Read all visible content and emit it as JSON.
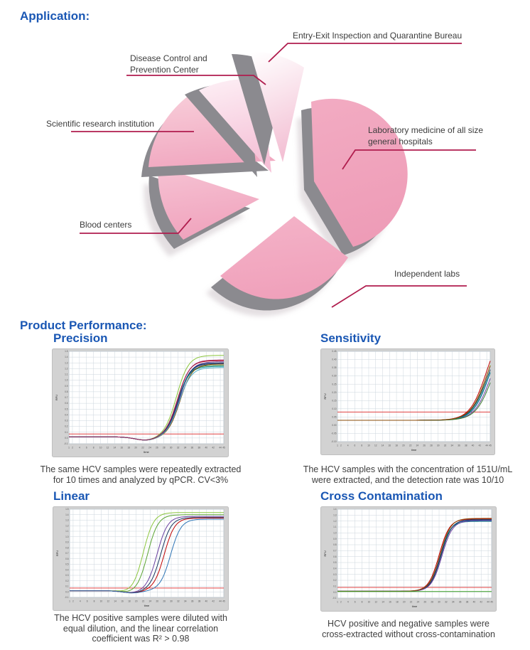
{
  "headings": {
    "application": "Application:",
    "product_performance": "Product Performance:"
  },
  "colors": {
    "heading": "#1a57b4",
    "callout_line": "#b01d4e",
    "pie_side_gray": "#8b8a8f",
    "caption_text": "#3f3f3f",
    "label_text": "#3c3c3c",
    "threshold": "#e04040",
    "panel_bg": "#d2d2d2",
    "panel_border": "#bfbfbf",
    "plot_grid": "#ccd6dd"
  },
  "chart_data": [
    {
      "type": "pie",
      "name": "application-sectors",
      "segments": [
        {
          "label": "Entry-Exit Inspection and Quarantine Bureau",
          "label_lines": [
            "Entry-Exit Inspection and Quarantine Bureau"
          ],
          "value": 7,
          "color": "#f3c0d4",
          "color_light": "#ffffff"
        },
        {
          "label": "Laboratory medicine of all size general hospitals",
          "label_lines": [
            "Laboratory medicine of all size",
            "general hospitals"
          ],
          "value": 32,
          "color": "#ee9cb7",
          "color_light": "#f2abc2"
        },
        {
          "label": "Independent labs",
          "label_lines": [
            "Independent labs"
          ],
          "value": 29,
          "color": "#f0a1bb",
          "color_light": "#f4b3c8"
        },
        {
          "label": "Blood centers",
          "label_lines": [
            "Blood centers"
          ],
          "value": 11,
          "color": "#f0a3bd",
          "color_light": "#f6c2d3"
        },
        {
          "label": "Scientific research institution",
          "label_lines": [
            "Scientific research institution"
          ],
          "value": 11,
          "color": "#f1a9c1",
          "color_light": "#f8cdd9"
        },
        {
          "label": "Disease Control and Prevention Center",
          "label_lines": [
            "Disease Control and",
            "Prevention Center"
          ],
          "value": 10,
          "color": "#f5c0d6",
          "color_light": "#fdeff5"
        }
      ]
    },
    {
      "type": "line",
      "key": "precision",
      "title": "Precision",
      "caption_lines": [
        "The same HCV samples were repeatedly extracted",
        "for 10 times and analyzed by qPCR. CV<3%"
      ],
      "xlabel": "time",
      "ylabel": "RFU",
      "xlim": [
        1,
        45
      ],
      "ylim": [
        -0.1,
        1.5
      ],
      "ystep": 0.1,
      "xticks": [
        1,
        2,
        4,
        6,
        8,
        10,
        12,
        14,
        16,
        18,
        20,
        22,
        24,
        26,
        28,
        30,
        32,
        34,
        36,
        38,
        40,
        42,
        44,
        45
      ],
      "threshold": 0.07,
      "baseline": 0.02,
      "dip": {
        "amp": 0.06,
        "center": 23,
        "width": 4.5
      },
      "slope": 1.7,
      "series": [
        {
          "color": "#8cc63e",
          "mid": 31.6,
          "top": 1.41
        },
        {
          "color": "#3a7d2c",
          "mid": 32.0,
          "top": 1.24
        },
        {
          "color": "#c00000",
          "mid": 31.9,
          "top": 1.32
        },
        {
          "color": "#1f4fa0",
          "mid": 32.2,
          "top": 1.27
        },
        {
          "color": "#6a3fa0",
          "mid": 32.4,
          "top": 1.3
        },
        {
          "color": "#17375e",
          "mid": 32.1,
          "top": 1.28
        },
        {
          "color": "#008b8b",
          "mid": 31.8,
          "top": 1.22
        },
        {
          "color": "#8a4b08",
          "mid": 32.6,
          "top": 1.26
        },
        {
          "color": "#4aacc5",
          "mid": 32.3,
          "top": 1.2
        },
        {
          "color": "#9c1f5f",
          "mid": 32.0,
          "top": 1.33
        }
      ]
    },
    {
      "type": "line",
      "key": "sensitivity",
      "title": "Sensitivity",
      "caption_lines": [
        "The HCV samples with the concentration of 151U/mL",
        "were extracted, and the detection rate was 10/10"
      ],
      "xlabel": "time",
      "ylabel": "RFU",
      "xlim": [
        1,
        45
      ],
      "ylim": [
        -0.1,
        0.45
      ],
      "ystep": 0.05,
      "xticks": [
        1,
        2,
        4,
        6,
        8,
        10,
        12,
        14,
        16,
        18,
        20,
        22,
        24,
        26,
        28,
        30,
        32,
        34,
        36,
        38,
        40,
        42,
        44,
        45
      ],
      "threshold": 0.08,
      "baseline": 0.03,
      "slope": 2.4,
      "series": [
        {
          "color": "#8cc63e",
          "mid": 44.6,
          "top": 0.62
        },
        {
          "color": "#c00000",
          "mid": 44.0,
          "top": 0.6
        },
        {
          "color": "#1f4fa0",
          "mid": 45.0,
          "top": 0.58
        },
        {
          "color": "#6a3fa0",
          "mid": 45.5,
          "top": 0.57
        },
        {
          "color": "#17375e",
          "mid": 44.4,
          "top": 0.55
        },
        {
          "color": "#008b8b",
          "mid": 44.8,
          "top": 0.56
        },
        {
          "color": "#3a7d2c",
          "mid": 45.8,
          "top": 0.55
        },
        {
          "color": "#8a4b08",
          "mid": 44.2,
          "top": 0.57
        }
      ]
    },
    {
      "type": "line",
      "key": "linear",
      "title": "Linear",
      "caption_lines": [
        "The HCV positive samples were diluted with",
        "equal dilution, and the linear correlation",
        "coefficient was R² > 0.98"
      ],
      "xlabel": "time",
      "ylabel": "RFU",
      "xlim": [
        1,
        45
      ],
      "ylim": [
        -0.1,
        1.5
      ],
      "ystep": 0.1,
      "xticks": [
        1,
        2,
        4,
        6,
        8,
        10,
        12,
        14,
        16,
        18,
        20,
        22,
        24,
        26,
        28,
        30,
        32,
        34,
        36,
        38,
        40,
        42,
        44,
        45
      ],
      "threshold": 0.07,
      "baseline": 0.02,
      "dip": {
        "amp": 0.04,
        "center": 19,
        "width": 4
      },
      "slope": 1.5,
      "series": [
        {
          "color": "#8cc63e",
          "mid": 22.0,
          "top": 1.42
        },
        {
          "color": "#5aa332",
          "mid": 23.3,
          "top": 1.38
        },
        {
          "color": "#6a3fa0",
          "mid": 26.0,
          "top": 1.35
        },
        {
          "color": "#17375e",
          "mid": 27.0,
          "top": 1.33
        },
        {
          "color": "#c00000",
          "mid": 28.0,
          "top": 1.32
        },
        {
          "color": "#2e75b6",
          "mid": 29.8,
          "top": 1.3
        }
      ]
    },
    {
      "type": "line",
      "key": "cross",
      "title": "Cross Contamination",
      "caption_lines": [
        "HCV positive and negative samples were",
        "cross-extracted without cross-contamination"
      ],
      "xlabel": "time",
      "ylabel": "RFU",
      "xlim": [
        1,
        45
      ],
      "ylim": [
        -0.1,
        1.4
      ],
      "ystep": 0.1,
      "xticks": [
        1,
        2,
        4,
        6,
        8,
        10,
        12,
        14,
        16,
        18,
        20,
        22,
        24,
        26,
        28,
        30,
        32,
        34,
        36,
        38,
        40,
        42,
        44,
        45
      ],
      "threshold": 0.08,
      "baseline": 0.015,
      "slope": 1.5,
      "series": [
        {
          "color": "#c00000",
          "mid": 30.0,
          "top": 1.22
        },
        {
          "color": "#1f4fa0",
          "mid": 30.4,
          "top": 1.2
        },
        {
          "color": "#008b8b",
          "mid": 30.2,
          "top": 1.18
        },
        {
          "color": "#17375e",
          "mid": 30.6,
          "top": 1.21
        },
        {
          "color": "#6a3fa0",
          "mid": 30.8,
          "top": 1.19
        },
        {
          "color": "#8a4b08",
          "mid": 30.3,
          "top": 1.23
        },
        {
          "color": "#3a9d23",
          "flat": 0.01
        }
      ]
    }
  ]
}
